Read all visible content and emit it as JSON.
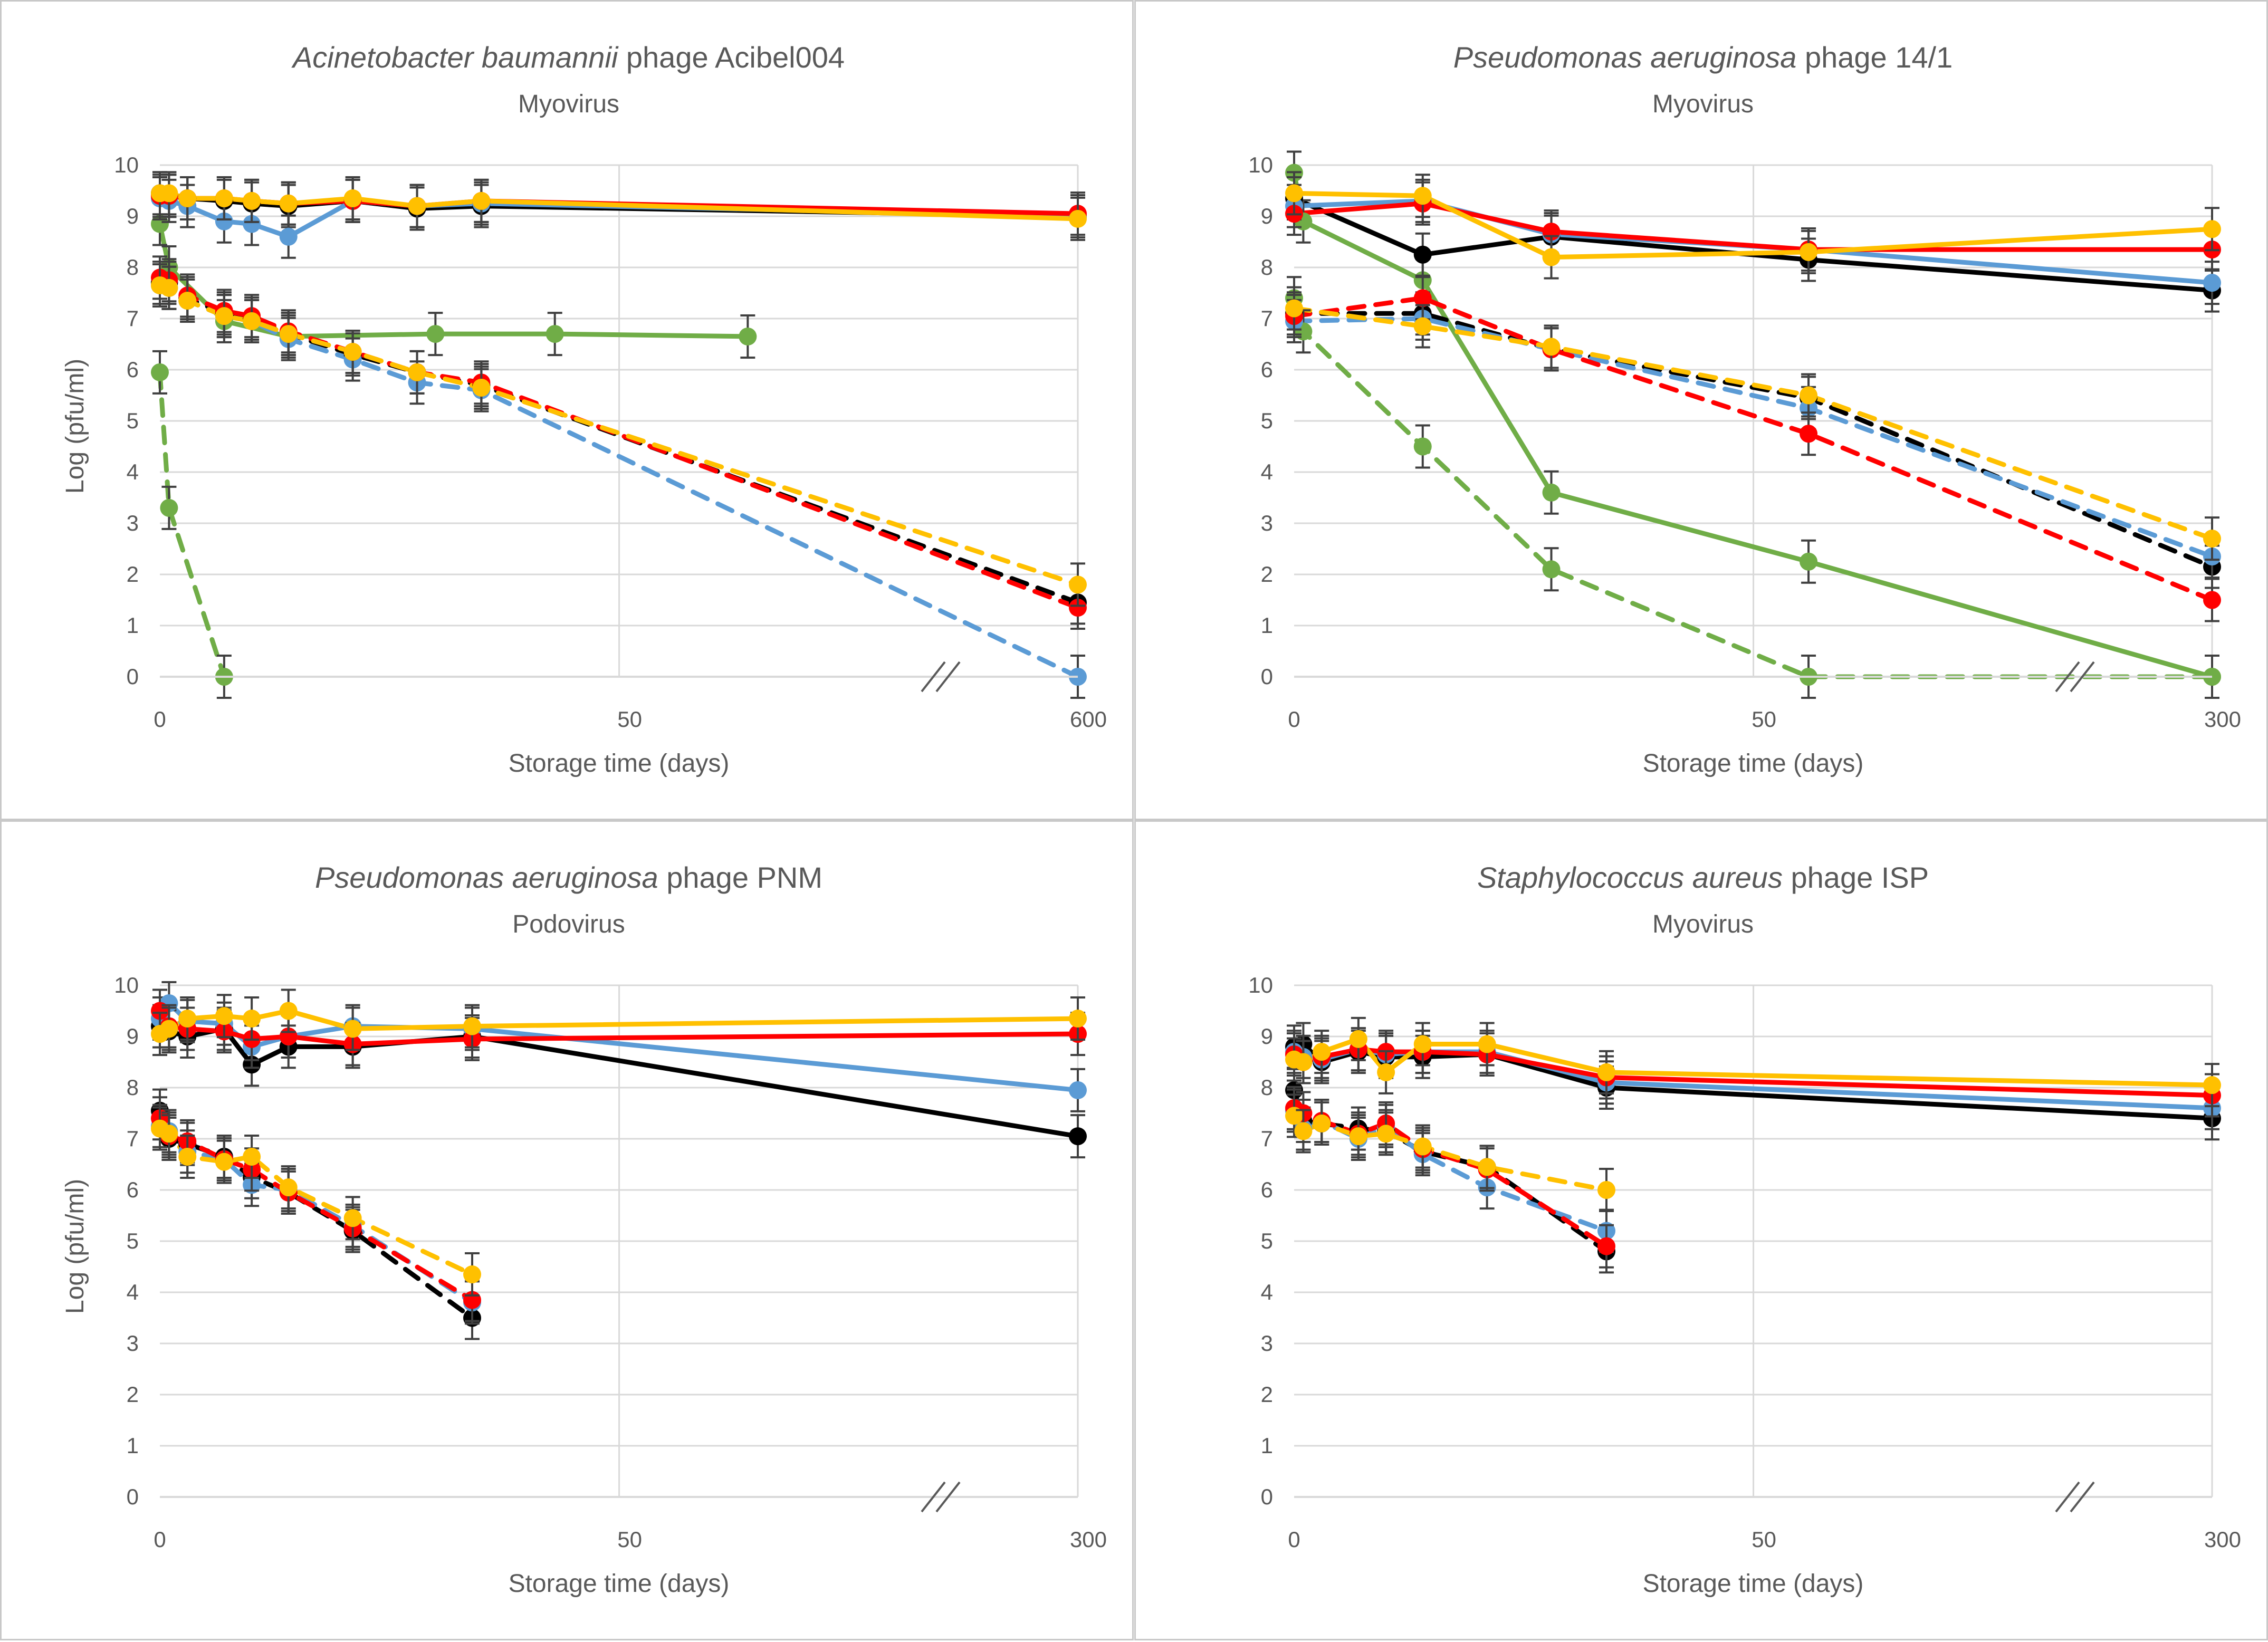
{
  "colors": {
    "series_a": "#000000",
    "series_b": "#5B9BD5",
    "series_c": "#FF0000",
    "series_d": "#FFC000",
    "series_e": "#70AD47",
    "error_bar": "#404040",
    "gridline": "#D9D9D9",
    "text": "#595959",
    "border": "#C8C8C8"
  },
  "chart_data": [
    {
      "type": "line",
      "title_italic": "Acinetobacter baumannii",
      "title_rest": " phage Acibel004",
      "subtitle": "Myovirus",
      "xlabel": "Storage time (days)",
      "ylabel": "Log (pfu/ml)",
      "ylim": [
        0,
        10
      ],
      "yticks": [
        "0",
        "1",
        "2",
        "3",
        "4",
        "5",
        "6",
        "7",
        "8",
        "9",
        "10"
      ],
      "xticks": [
        "0",
        "50",
        "600"
      ],
      "axis_break": "between 50 and 600 days",
      "series": [
        {
          "name": "black-solid",
          "color": "#000000",
          "dash": false,
          "x": [
            0,
            1,
            3,
            7,
            10,
            14,
            21,
            28,
            35,
            600
          ],
          "y": [
            9.45,
            9.4,
            9.35,
            9.3,
            9.25,
            9.2,
            9.3,
            9.15,
            9.2,
            9.0
          ]
        },
        {
          "name": "blue-solid",
          "color": "#5B9BD5",
          "dash": false,
          "x": [
            0,
            1,
            3,
            7,
            10,
            14,
            21,
            28,
            35,
            600
          ],
          "y": [
            9.35,
            9.3,
            9.2,
            8.9,
            8.85,
            8.6,
            9.3,
            9.2,
            9.25,
            9.0
          ]
        },
        {
          "name": "red-solid",
          "color": "#FF0000",
          "dash": false,
          "x": [
            0,
            1,
            3,
            7,
            10,
            14,
            21,
            28,
            35,
            600
          ],
          "y": [
            9.4,
            9.4,
            9.35,
            9.35,
            9.3,
            9.25,
            9.3,
            9.2,
            9.3,
            9.05
          ]
        },
        {
          "name": "yellow-solid",
          "color": "#FFC000",
          "dash": false,
          "x": [
            0,
            1,
            3,
            7,
            10,
            14,
            21,
            28,
            35,
            600
          ],
          "y": [
            9.45,
            9.45,
            9.35,
            9.35,
            9.3,
            9.25,
            9.35,
            9.2,
            9.3,
            8.95
          ]
        },
        {
          "name": "green-solid",
          "color": "#70AD47",
          "dash": false,
          "x": [
            0,
            1,
            7,
            14,
            30,
            43,
            64
          ],
          "y": [
            8.85,
            8.0,
            6.95,
            6.65,
            6.7,
            6.7,
            6.65
          ]
        },
        {
          "name": "black-dashed",
          "color": "#000000",
          "dash": true,
          "x": [
            0,
            1,
            3,
            7,
            10,
            14,
            21,
            28,
            35,
            600
          ],
          "y": [
            7.7,
            7.7,
            7.4,
            7.1,
            7.0,
            6.7,
            6.3,
            5.95,
            5.7,
            1.45
          ]
        },
        {
          "name": "blue-dashed",
          "color": "#5B9BD5",
          "dash": true,
          "x": [
            0,
            1,
            3,
            7,
            10,
            14,
            21,
            28,
            35,
            600
          ],
          "y": [
            7.65,
            7.6,
            7.35,
            7.05,
            6.95,
            6.6,
            6.2,
            5.75,
            5.6,
            0.0
          ]
        },
        {
          "name": "red-dashed",
          "color": "#FF0000",
          "dash": true,
          "x": [
            0,
            1,
            3,
            7,
            10,
            14,
            21,
            28,
            35,
            600
          ],
          "y": [
            7.8,
            7.75,
            7.45,
            7.15,
            7.05,
            6.75,
            6.35,
            5.95,
            5.75,
            1.35
          ]
        },
        {
          "name": "yellow-dashed",
          "color": "#FFC000",
          "dash": true,
          "x": [
            0,
            1,
            3,
            7,
            10,
            14,
            21,
            28,
            35,
            600
          ],
          "y": [
            7.65,
            7.6,
            7.35,
            7.05,
            6.95,
            6.7,
            6.35,
            5.95,
            5.65,
            1.8
          ]
        },
        {
          "name": "green-dashed",
          "color": "#70AD47",
          "dash": true,
          "x": [
            0,
            1,
            7
          ],
          "y": [
            5.95,
            3.3,
            0.0
          ]
        }
      ]
    },
    {
      "type": "line",
      "title_italic": "Pseudomonas aeruginosa",
      "title_rest": " phage 14/1",
      "subtitle": "Myovirus",
      "xlabel": "Storage time (days)",
      "ylabel": "",
      "ylim": [
        0,
        10
      ],
      "yticks": [
        "0",
        "1",
        "2",
        "3",
        "4",
        "5",
        "6",
        "7",
        "8",
        "9",
        "10"
      ],
      "xticks": [
        "0",
        "50",
        "300"
      ],
      "axis_break": "between 50 and 300 days",
      "series": [
        {
          "name": "black-solid",
          "color": "#000000",
          "dash": false,
          "x": [
            0,
            14,
            28,
            56,
            300
          ],
          "y": [
            9.35,
            8.25,
            8.6,
            8.15,
            7.55
          ]
        },
        {
          "name": "blue-solid",
          "color": "#5B9BD5",
          "dash": false,
          "x": [
            0,
            14,
            28,
            56,
            300
          ],
          "y": [
            9.2,
            9.3,
            8.65,
            8.35,
            7.7
          ]
        },
        {
          "name": "red-solid",
          "color": "#FF0000",
          "dash": false,
          "x": [
            0,
            14,
            28,
            56,
            300
          ],
          "y": [
            9.05,
            9.25,
            8.7,
            8.35,
            8.35
          ]
        },
        {
          "name": "yellow-solid",
          "color": "#FFC000",
          "dash": false,
          "x": [
            0,
            14,
            28,
            56,
            300
          ],
          "y": [
            9.45,
            9.4,
            8.2,
            8.3,
            8.75
          ]
        },
        {
          "name": "green-solid",
          "color": "#70AD47",
          "dash": false,
          "x": [
            0,
            1,
            14,
            28,
            56,
            300
          ],
          "y": [
            9.85,
            8.9,
            7.75,
            3.6,
            2.25,
            0.0
          ]
        },
        {
          "name": "black-dashed",
          "color": "#000000",
          "dash": true,
          "x": [
            0,
            14,
            28,
            56,
            300
          ],
          "y": [
            7.1,
            7.1,
            6.4,
            5.45,
            2.15
          ]
        },
        {
          "name": "blue-dashed",
          "color": "#5B9BD5",
          "dash": true,
          "x": [
            0,
            14,
            28,
            56,
            300
          ],
          "y": [
            6.95,
            7.0,
            6.4,
            5.25,
            2.35
          ]
        },
        {
          "name": "red-dashed",
          "color": "#FF0000",
          "dash": true,
          "x": [
            0,
            14,
            28,
            56,
            300
          ],
          "y": [
            7.05,
            7.4,
            6.4,
            4.75,
            1.5
          ]
        },
        {
          "name": "yellow-dashed",
          "color": "#FFC000",
          "dash": true,
          "x": [
            0,
            14,
            28,
            56,
            300
          ],
          "y": [
            7.2,
            6.85,
            6.45,
            5.5,
            2.7
          ]
        },
        {
          "name": "green-dashed",
          "color": "#70AD47",
          "dash": true,
          "x": [
            0,
            1,
            14,
            28,
            56,
            300
          ],
          "y": [
            7.4,
            6.75,
            4.5,
            2.1,
            0.0,
            0.0
          ]
        }
      ]
    },
    {
      "type": "line",
      "title_italic": "Pseudomonas aeruginosa",
      "title_rest": " phage PNM",
      "subtitle": "Podovirus",
      "xlabel": "Storage time (days)",
      "ylabel": "Log (pfu/ml)",
      "ylim": [
        0,
        10
      ],
      "yticks": [
        "0",
        "1",
        "2",
        "3",
        "4",
        "5",
        "6",
        "7",
        "8",
        "9",
        "10"
      ],
      "xticks": [
        "0",
        "50",
        "300"
      ],
      "axis_break": "between 50 and 300 days",
      "series": [
        {
          "name": "black-solid",
          "color": "#000000",
          "dash": false,
          "x": [
            0,
            1,
            3,
            7,
            10,
            14,
            21,
            34,
            300
          ],
          "y": [
            9.2,
            9.1,
            9.0,
            9.15,
            8.45,
            8.8,
            8.8,
            9.0,
            7.05
          ]
        },
        {
          "name": "blue-solid",
          "color": "#5B9BD5",
          "dash": false,
          "x": [
            0,
            1,
            3,
            7,
            10,
            14,
            21,
            34,
            300
          ],
          "y": [
            9.35,
            9.65,
            9.3,
            9.25,
            8.8,
            9.0,
            9.2,
            9.15,
            7.95
          ]
        },
        {
          "name": "red-solid",
          "color": "#FF0000",
          "dash": false,
          "x": [
            0,
            1,
            3,
            7,
            10,
            14,
            21,
            34,
            300
          ],
          "y": [
            9.5,
            9.2,
            9.15,
            9.1,
            8.95,
            9.0,
            8.85,
            8.95,
            9.05
          ]
        },
        {
          "name": "yellow-solid",
          "color": "#FFC000",
          "dash": false,
          "x": [
            0,
            1,
            3,
            7,
            10,
            14,
            21,
            34,
            300
          ],
          "y": [
            9.05,
            9.15,
            9.35,
            9.4,
            9.35,
            9.5,
            9.15,
            9.2,
            9.35
          ]
        },
        {
          "name": "black-dashed",
          "color": "#000000",
          "dash": true,
          "x": [
            0,
            1,
            3,
            7,
            10,
            14,
            21,
            34
          ],
          "y": [
            7.55,
            7.0,
            6.9,
            6.65,
            6.25,
            5.95,
            5.2,
            3.5
          ]
        },
        {
          "name": "blue-dashed",
          "color": "#5B9BD5",
          "dash": true,
          "x": [
            0,
            1,
            3,
            7,
            10,
            14,
            21,
            34
          ],
          "y": [
            7.25,
            7.15,
            6.75,
            6.6,
            6.1,
            6.0,
            5.3,
            3.8
          ]
        },
        {
          "name": "red-dashed",
          "color": "#FF0000",
          "dash": true,
          "x": [
            0,
            1,
            3,
            7,
            10,
            14,
            21,
            34
          ],
          "y": [
            7.4,
            7.05,
            6.95,
            6.6,
            6.4,
            5.95,
            5.25,
            3.85
          ]
        },
        {
          "name": "yellow-dashed",
          "color": "#FFC000",
          "dash": true,
          "x": [
            0,
            1,
            3,
            7,
            10,
            14,
            21,
            34
          ],
          "y": [
            7.2,
            7.1,
            6.65,
            6.55,
            6.65,
            6.05,
            5.45,
            4.35
          ]
        }
      ]
    },
    {
      "type": "line",
      "title_italic": "Staphylococcus aureus",
      "title_rest": " phage ISP",
      "subtitle": "Myovirus",
      "xlabel": "Storage time (days)",
      "ylabel": "",
      "ylim": [
        0,
        10
      ],
      "yticks": [
        "0",
        "1",
        "2",
        "3",
        "4",
        "5",
        "6",
        "7",
        "8",
        "9",
        "10"
      ],
      "xticks": [
        "0",
        "50",
        "300"
      ],
      "axis_break": "between 50 and 300 days",
      "series": [
        {
          "name": "black-solid",
          "color": "#000000",
          "dash": false,
          "x": [
            0,
            1,
            3,
            7,
            10,
            14,
            21,
            34,
            300
          ],
          "y": [
            8.8,
            8.85,
            8.5,
            8.7,
            8.6,
            8.6,
            8.65,
            8.0,
            7.4
          ]
        },
        {
          "name": "blue-solid",
          "color": "#5B9BD5",
          "dash": false,
          "x": [
            0,
            1,
            3,
            7,
            10,
            14,
            21,
            34,
            300
          ],
          "y": [
            8.7,
            8.6,
            8.55,
            8.75,
            8.65,
            8.7,
            8.7,
            8.1,
            7.6
          ]
        },
        {
          "name": "red-solid",
          "color": "#FF0000",
          "dash": false,
          "x": [
            0,
            1,
            3,
            7,
            10,
            14,
            21,
            34,
            300
          ],
          "y": [
            8.65,
            8.5,
            8.6,
            8.75,
            8.7,
            8.7,
            8.65,
            8.2,
            7.85
          ]
        },
        {
          "name": "yellow-solid",
          "color": "#FFC000",
          "dash": false,
          "x": [
            0,
            1,
            3,
            7,
            10,
            14,
            21,
            34,
            300
          ],
          "y": [
            8.55,
            8.5,
            8.7,
            8.95,
            8.3,
            8.85,
            8.85,
            8.3,
            8.05
          ]
        },
        {
          "name": "black-dashed",
          "color": "#000000",
          "dash": true,
          "x": [
            0,
            1,
            3,
            7,
            10,
            14,
            21,
            34
          ],
          "y": [
            7.95,
            7.35,
            7.3,
            7.2,
            7.15,
            6.75,
            6.45,
            4.8
          ]
        },
        {
          "name": "blue-dashed",
          "color": "#5B9BD5",
          "dash": true,
          "x": [
            0,
            1,
            3,
            7,
            10,
            14,
            21,
            34
          ],
          "y": [
            7.55,
            7.2,
            7.35,
            7.0,
            7.25,
            6.7,
            6.05,
            5.2
          ]
        },
        {
          "name": "red-dashed",
          "color": "#FF0000",
          "dash": true,
          "x": [
            0,
            1,
            3,
            7,
            10,
            14,
            21,
            34
          ],
          "y": [
            7.6,
            7.5,
            7.35,
            7.1,
            7.3,
            6.8,
            6.4,
            4.9
          ]
        },
        {
          "name": "yellow-dashed",
          "color": "#FFC000",
          "dash": true,
          "x": [
            0,
            1,
            3,
            7,
            10,
            14,
            21,
            34
          ],
          "y": [
            7.45,
            7.15,
            7.3,
            7.05,
            7.1,
            6.85,
            6.45,
            6.0
          ]
        }
      ]
    }
  ]
}
